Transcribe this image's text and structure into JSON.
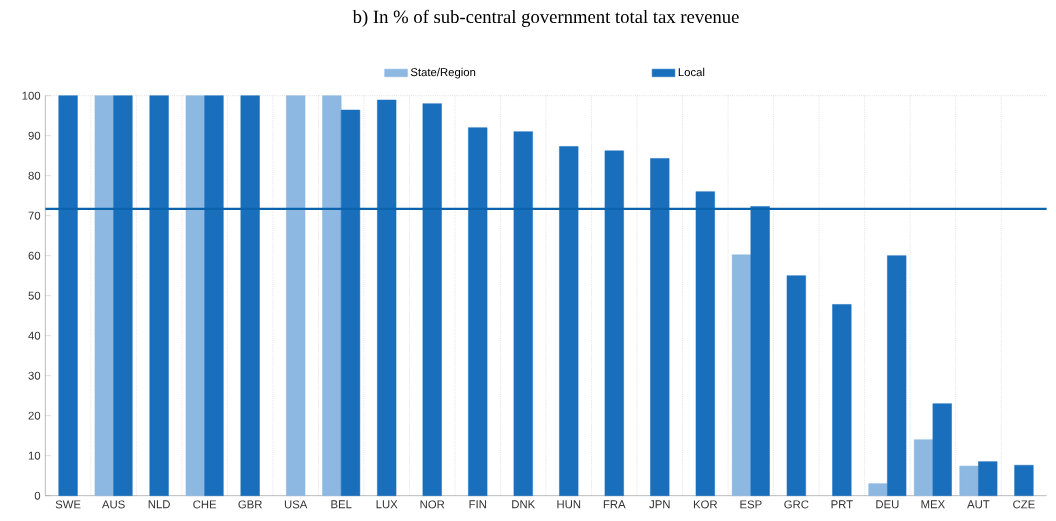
{
  "chart_data": {
    "type": "bar",
    "title": "b) In % of sub-central government total tax revenue",
    "categories": [
      "SWE",
      "AUS",
      "NLD",
      "CHE",
      "GBR",
      "USA",
      "BEL",
      "LUX",
      "NOR",
      "FIN",
      "DNK",
      "HUN",
      "FRA",
      "JPN",
      "KOR",
      "ESP",
      "GRC",
      "PRT",
      "DEU",
      "MEX",
      "AUT",
      "CZE"
    ],
    "series": [
      {
        "name": "State/Region",
        "color": "#8cb8e2",
        "values": [
          null,
          100,
          null,
          100,
          null,
          100,
          100,
          null,
          null,
          null,
          null,
          null,
          null,
          null,
          null,
          60.2,
          null,
          null,
          3,
          14,
          7.4,
          null
        ]
      },
      {
        "name": "Local",
        "color": "#1a6fbd",
        "values": [
          100,
          100,
          100,
          100,
          100,
          null,
          96.4,
          98.9,
          98,
          92,
          91,
          87.3,
          86.2,
          84.3,
          76,
          72.3,
          55,
          47.8,
          60,
          23,
          8.5,
          7.6
        ]
      }
    ],
    "ylim": [
      0,
      100
    ],
    "yticks": [
      0,
      10,
      20,
      30,
      40,
      50,
      60,
      70,
      80,
      90,
      100
    ],
    "ref_lines": [
      {
        "axis": "y",
        "value": 71.7,
        "color": "#0b63ad"
      }
    ],
    "grid": "x",
    "legend": "top"
  }
}
